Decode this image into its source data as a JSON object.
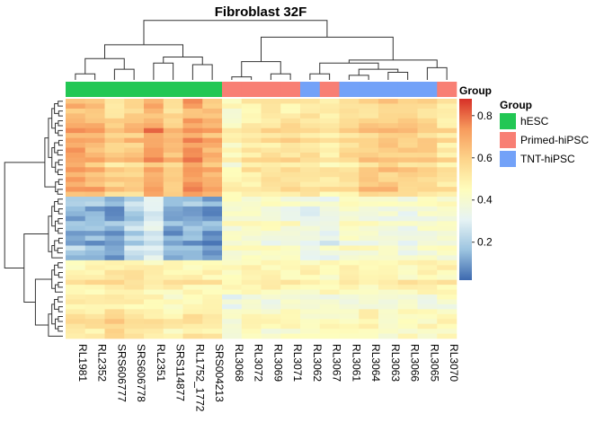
{
  "chart_data": {
    "type": "heatmap",
    "title": "Fibroblast 32F",
    "xlabel": "",
    "ylabel": "",
    "columns": [
      "RL1981",
      "RL2352",
      "SRS606777",
      "SRS606778",
      "RL2351",
      "SRS114877",
      "RL1752_1772",
      "SRS004213",
      "RL3068",
      "RL3072",
      "RL3069",
      "RL3071",
      "RL3062",
      "RL3067",
      "RL3061",
      "RL3064",
      "RL3063",
      "RL3066",
      "RL3065",
      "RL3070"
    ],
    "column_groups": [
      "hESC",
      "hESC",
      "hESC",
      "hESC",
      "hESC",
      "hESC",
      "hESC",
      "hESC",
      "Primed-hiPSC",
      "Primed-hiPSC",
      "Primed-hiPSC",
      "Primed-hiPSC",
      "TNT-hiPSC",
      "Primed-hiPSC",
      "TNT-hiPSC",
      "TNT-hiPSC",
      "TNT-hiPSC",
      "TNT-hiPSC",
      "TNT-hiPSC",
      "Primed-hiPSC"
    ],
    "annotation_label": "Group",
    "legend": {
      "title": "Group",
      "placement": "right",
      "entries": [
        {
          "label": "hESC",
          "color": "#22C754"
        },
        {
          "label": "Primed-hiPSC",
          "color": "#F87F74"
        },
        {
          "label": "TNT-hiPSC",
          "color": "#73A2F8"
        }
      ]
    },
    "colorbar": {
      "range": [
        0.02,
        0.88
      ],
      "ticks": [
        0.2,
        0.4,
        0.6,
        0.8
      ],
      "tick_labels": [
        "0.2",
        "0.4",
        "0.6",
        "0.8"
      ],
      "colors": [
        "#3D69AF",
        "#9CC4E0",
        "#E6F3F4",
        "#FEFDBC",
        "#FDD48A",
        "#F79B5D",
        "#D73027"
      ]
    },
    "row_clusters": [
      {
        "rows": 20,
        "means": [
          0.69,
          0.66,
          0.58,
          0.62,
          0.71,
          0.61,
          0.72,
          0.66,
          0.46,
          0.51,
          0.53,
          0.53,
          0.55,
          0.52,
          0.56,
          0.6,
          0.61,
          0.58,
          0.59,
          0.52
        ]
      },
      {
        "rows": 13,
        "means": [
          0.16,
          0.15,
          0.12,
          0.22,
          0.28,
          0.11,
          0.14,
          0.11,
          0.4,
          0.42,
          0.4,
          0.39,
          0.34,
          0.35,
          0.42,
          0.39,
          0.39,
          0.36,
          0.39,
          0.39
        ]
      },
      {
        "rows": 7,
        "means": [
          0.48,
          0.51,
          0.53,
          0.54,
          0.5,
          0.49,
          0.49,
          0.49,
          0.47,
          0.48,
          0.48,
          0.47,
          0.47,
          0.48,
          0.49,
          0.48,
          0.49,
          0.48,
          0.49,
          0.49
        ]
      },
      {
        "rows": 9,
        "means": [
          0.52,
          0.51,
          0.56,
          0.54,
          0.5,
          0.47,
          0.5,
          0.52,
          0.37,
          0.42,
          0.41,
          0.41,
          0.4,
          0.42,
          0.43,
          0.45,
          0.41,
          0.43,
          0.42,
          0.44
        ]
      }
    ]
  }
}
